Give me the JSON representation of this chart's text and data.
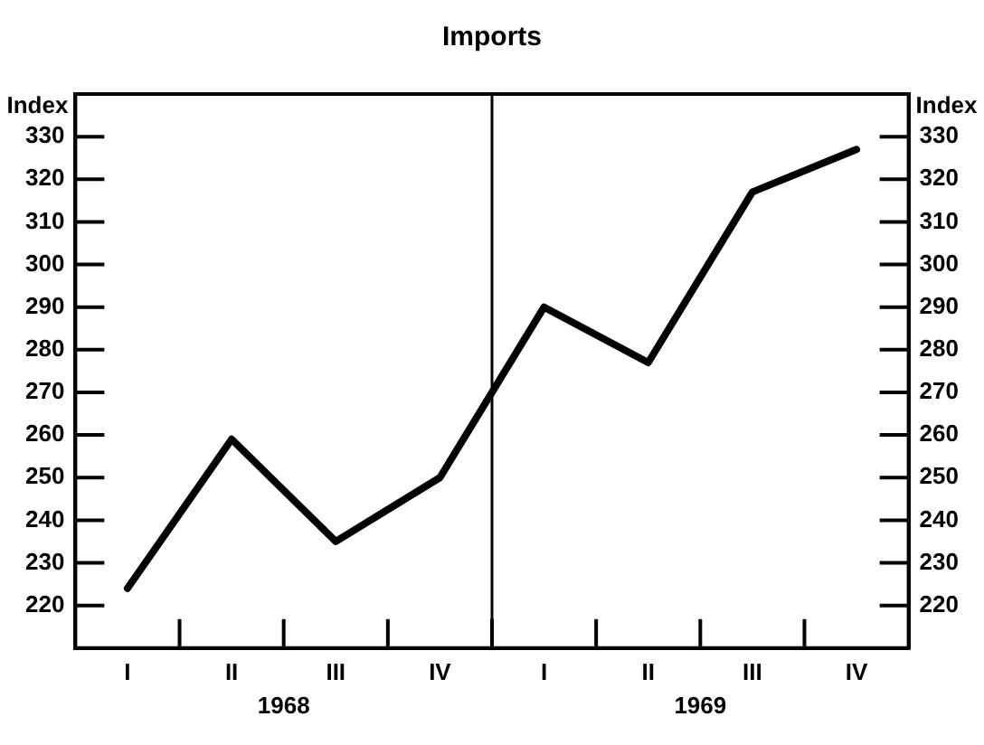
{
  "chart_data": {
    "type": "line",
    "title": "Imports",
    "ylabel": "Index",
    "y2label": "Index",
    "categories": [
      "I",
      "II",
      "III",
      "IV",
      "I",
      "II",
      "III",
      "IV"
    ],
    "series": [
      {
        "color": "#000000",
        "values": [
          224,
          259,
          235,
          250,
          290,
          277,
          317,
          327
        ]
      }
    ],
    "ylim": [
      210,
      340
    ],
    "yticks": [
      220,
      230,
      240,
      250,
      260,
      270,
      280,
      290,
      300,
      310,
      320,
      330
    ],
    "y2lim": [
      210,
      340
    ],
    "y2ticks": [
      220,
      230,
      240,
      250,
      260,
      270,
      280,
      290,
      300,
      310,
      320,
      330
    ],
    "annotations": [
      "1968",
      "1969"
    ],
    "grid": false,
    "legend": false,
    "marker": "none",
    "line_style": "solid"
  }
}
